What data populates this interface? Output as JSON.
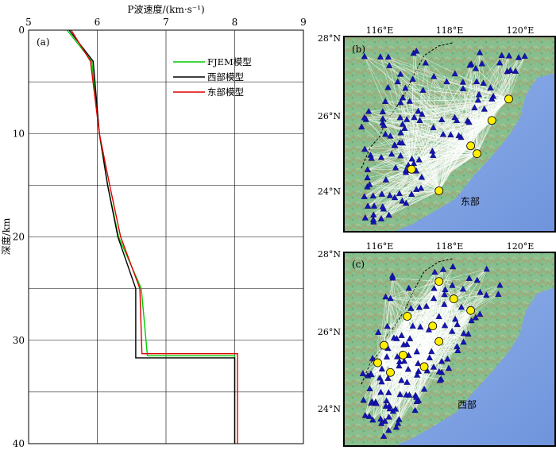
{
  "chart_data": [
    {
      "type": "line",
      "panel_label": "(a)",
      "xlabel": "P波速度/(km·s⁻¹)",
      "ylabel": "深度/km",
      "xlim": [
        5,
        9
      ],
      "ylim": [
        0,
        40
      ],
      "y_inverted": true,
      "x_axis_position": "top",
      "xticks": [
        "5",
        "6",
        "7",
        "8",
        "9"
      ],
      "yticks": [
        "0",
        "10",
        "20",
        "30",
        "40"
      ],
      "grid": "horizontal every 5 km",
      "legend_placement": "top-right",
      "series": [
        {
          "name": "FJEM模型",
          "color": "#00cc00",
          "points": [
            [
              5.56,
              0
            ],
            [
              5.92,
              3
            ],
            [
              6.03,
              10
            ],
            [
              6.15,
              15
            ],
            [
              6.31,
              20
            ],
            [
              6.64,
              25
            ],
            [
              6.73,
              31.5
            ],
            [
              8.0,
              31.5
            ],
            [
              8.0,
              40
            ]
          ]
        },
        {
          "name": "西部模型",
          "color": "#000000",
          "points": [
            [
              5.59,
              0
            ],
            [
              5.94,
              3
            ],
            [
              6.03,
              10
            ],
            [
              6.15,
              15
            ],
            [
              6.3,
              20
            ],
            [
              6.56,
              25
            ],
            [
              6.56,
              31.7
            ],
            [
              8.0,
              31.7
            ],
            [
              8.0,
              40
            ]
          ]
        },
        {
          "name": "东部模型",
          "color": "#dd0000",
          "points": [
            [
              5.62,
              0
            ],
            [
              5.9,
              3
            ],
            [
              6.03,
              10
            ],
            [
              6.18,
              15
            ],
            [
              6.34,
              20
            ],
            [
              6.62,
              25
            ],
            [
              6.65,
              31.3
            ],
            [
              8.04,
              31.3
            ],
            [
              8.04,
              40
            ]
          ]
        }
      ]
    },
    {
      "type": "map",
      "panel_label": "(b)",
      "region_label": "东部",
      "lon_ticks": [
        "116°E",
        "118°E",
        "120°E"
      ],
      "lat_ticks": [
        "28°N",
        "26°N",
        "24°N"
      ],
      "stations": "blue triangles",
      "events": "yellow circles",
      "rays": "white lines"
    },
    {
      "type": "map",
      "panel_label": "(c)",
      "region_label": "西部",
      "lon_ticks": [
        "116°E",
        "118°E",
        "120°E"
      ],
      "lat_ticks": [
        "28°N",
        "26°N",
        "24°N"
      ],
      "stations": "blue triangles",
      "events": "yellow circles",
      "rays": "white lines"
    }
  ]
}
